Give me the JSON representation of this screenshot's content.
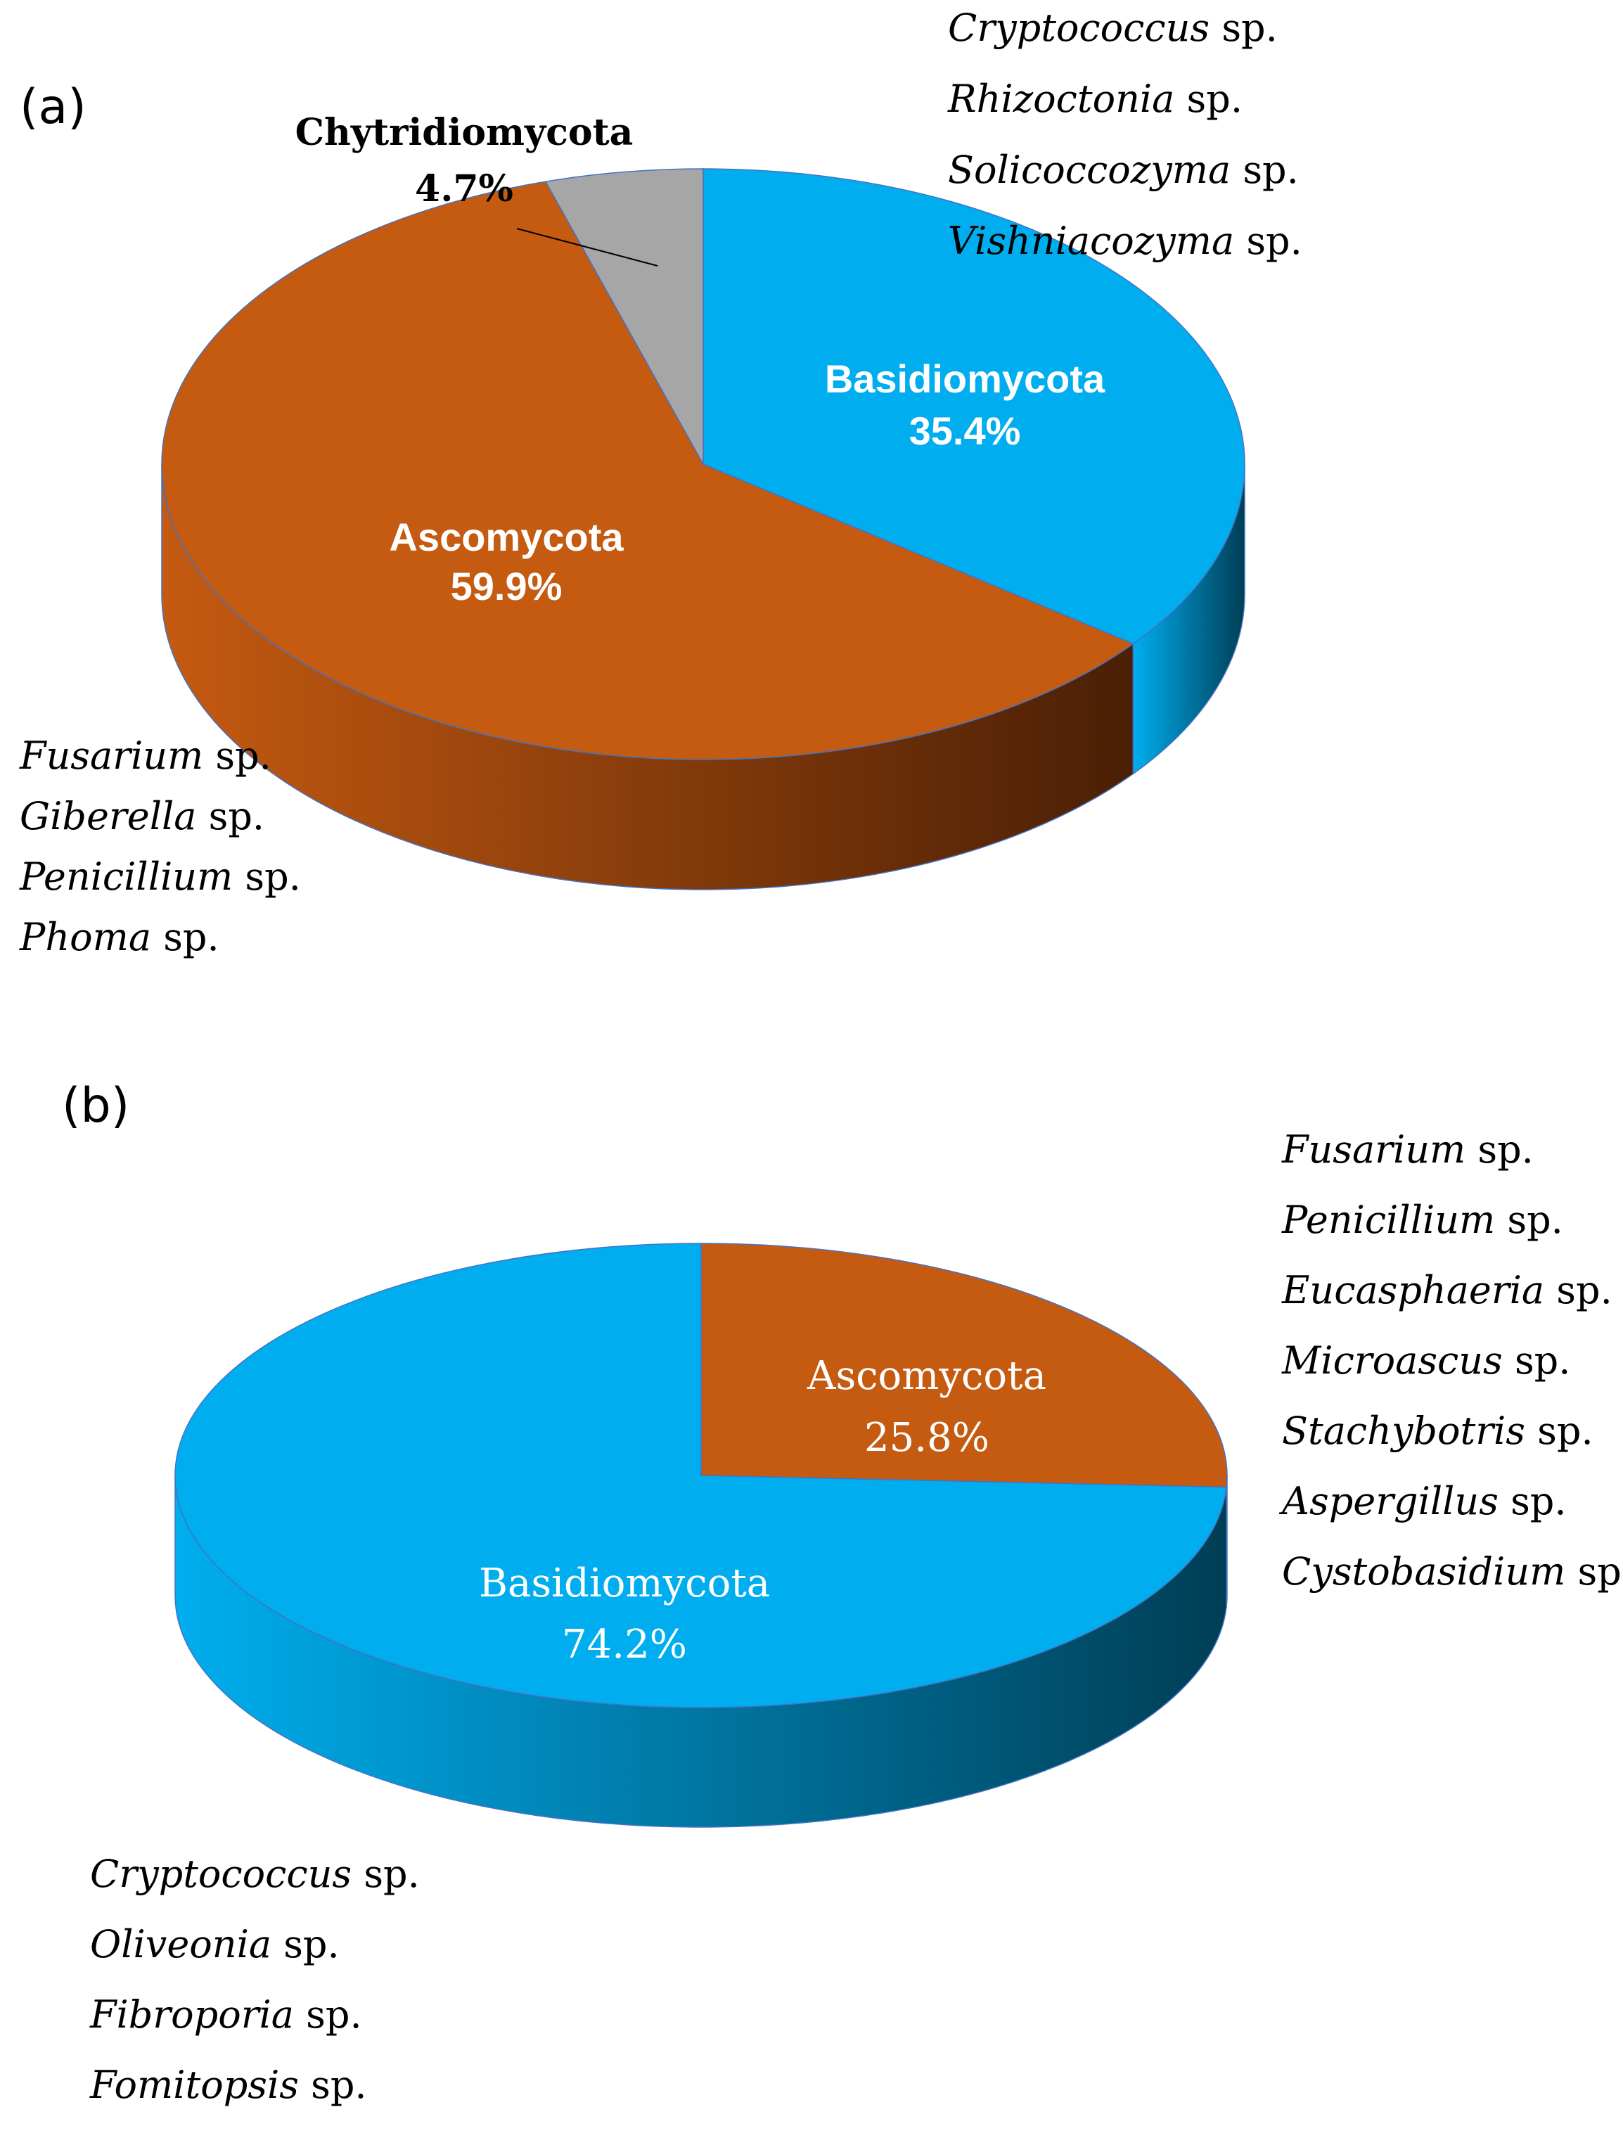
{
  "chart_data": [
    {
      "type": "pie",
      "panel_label": "(a)",
      "slices": [
        {
          "name": "Basidiomycota",
          "value": 35.4,
          "label": "35.4%",
          "color": "#00AEEF",
          "dark_color": "#003E55"
        },
        {
          "name": "Ascomycota",
          "value": 59.9,
          "label": "59.9%",
          "color": "#C55A11",
          "dark_color": "#4A1F05"
        },
        {
          "name": "Chytridiomycota",
          "value": 4.7,
          "label": "4.7%",
          "color": "#A6A6A6",
          "dark_color": "#555555"
        }
      ],
      "species_groups": [
        {
          "phylum": "Basidiomycota",
          "species": [
            {
              "genus": "Cryptococcus",
              "suffix": " sp."
            },
            {
              "genus": "Rhizoctonia",
              "suffix": " sp."
            },
            {
              "genus": "Solicoccozyma",
              "suffix": " sp."
            },
            {
              "genus": "Vishniacozyma",
              "suffix": " sp."
            }
          ]
        },
        {
          "phylum": "Ascomycota",
          "species": [
            {
              "genus": "Fusarium",
              "suffix": " sp."
            },
            {
              "genus": "Giberella",
              "suffix": " sp."
            },
            {
              "genus": "Penicillium",
              "suffix": " sp."
            },
            {
              "genus": "Phoma",
              "suffix": " sp."
            }
          ]
        }
      ]
    },
    {
      "type": "pie",
      "panel_label": "(b)",
      "slices": [
        {
          "name": "Ascomycota",
          "value": 25.8,
          "label": "25.8%",
          "color": "#C55A11",
          "dark_color": "#4A1F05"
        },
        {
          "name": "Basidiomycota",
          "value": 74.2,
          "label": "74.2%",
          "color": "#00AEEF",
          "dark_color": "#003E55"
        }
      ],
      "species_groups": [
        {
          "phylum": "Ascomycota",
          "species": [
            {
              "genus": "Fusarium",
              "suffix": " sp."
            },
            {
              "genus": "Penicillium",
              "suffix": " sp."
            },
            {
              "genus": "Eucasphaeria",
              "suffix": " sp."
            },
            {
              "genus": "Microascus",
              "suffix": " sp."
            },
            {
              "genus": "Stachybotris",
              "suffix": " sp."
            },
            {
              "genus": "Aspergillus",
              "suffix": " sp."
            },
            {
              "genus": "Cystobasidium",
              "suffix": " sp."
            }
          ]
        },
        {
          "phylum": "Basidiomycota",
          "species": [
            {
              "genus": "Cryptococcus",
              "suffix": " sp."
            },
            {
              "genus": "Oliveonia",
              "suffix": " sp."
            },
            {
              "genus": "Fibroporia",
              "suffix": " sp."
            },
            {
              "genus": "Fomitopsis",
              "suffix": " sp."
            }
          ]
        }
      ]
    }
  ]
}
